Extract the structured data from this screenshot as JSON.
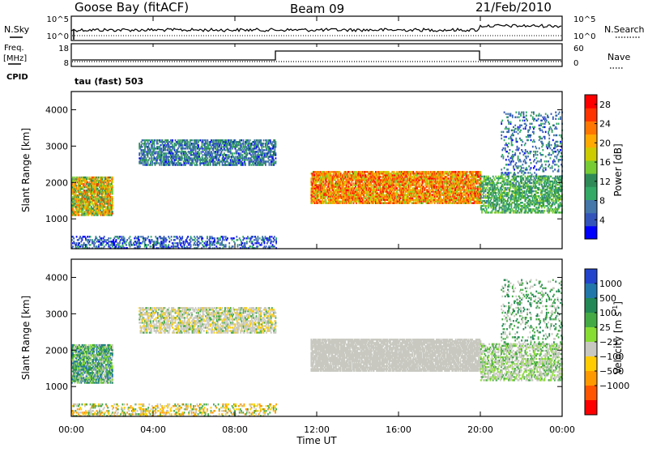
{
  "header": {
    "station": "Goose Bay (fitACF)",
    "beam": "Beam 09",
    "date": "21/Feb/2010"
  },
  "nsky_panel": {
    "left_label": "N.Sky",
    "left_ticks": [
      "10^5",
      "10^0"
    ],
    "right_ticks": [
      "10^5",
      "10^0"
    ],
    "right_label": "N.Search"
  },
  "freq_panel": {
    "left_label_line1": "Freq.",
    "left_label_line2": "[MHz]",
    "left_ticks": [
      "18",
      "8"
    ],
    "right_ticks": [
      "60",
      "0"
    ],
    "right_label": "Nave",
    "cpid_label": "CPID",
    "cpid_value": "tau (fast) 503"
  },
  "chart_data": [
    {
      "type": "heatmap",
      "title": "",
      "xlabel": "Time UT",
      "ylabel": "Slant Range [km]",
      "xlim_hours": [
        0,
        24
      ],
      "ylim_km": [
        180,
        4500
      ],
      "x_ticks": [
        "00:00",
        "04:00",
        "08:00",
        "12:00",
        "16:00",
        "20:00",
        "00:00"
      ],
      "y_ticks": [
        "1000",
        "2000",
        "3000",
        "4000"
      ],
      "colorbar_label": "Power [dB]",
      "colorbar_ticks": [
        "28",
        "24",
        "20",
        "16",
        "12",
        "8",
        "4"
      ],
      "colorbar_range": [
        0,
        30
      ],
      "colors": [
        "#0000ff",
        "#3355bb",
        "#4477aa",
        "#33aa66",
        "#2e8b57",
        "#77cc33",
        "#cccc00",
        "#ffaa00",
        "#ff7700",
        "#ff3300",
        "#ff0000"
      ],
      "regions": [
        {
          "t": [
            0.0,
            2.0
          ],
          "range_km": [
            1000,
            2300
          ],
          "level": "mid-high"
        },
        {
          "t": [
            3.3,
            10.0
          ],
          "range_km": [
            2400,
            3300
          ],
          "level": "low-mid"
        },
        {
          "t": [
            0.0,
            10.0
          ],
          "range_km": [
            200,
            600
          ],
          "level": "low"
        },
        {
          "t": [
            11.7,
            20.0
          ],
          "range_km": [
            1300,
            2400
          ],
          "level": "high"
        },
        {
          "t": [
            20.0,
            24.0
          ],
          "range_km": [
            800,
            2300
          ],
          "level": "mid"
        }
      ]
    },
    {
      "type": "heatmap",
      "title": "",
      "xlabel": "Time UT",
      "ylabel": "Slant Range [km]",
      "xlim_hours": [
        0,
        24
      ],
      "ylim_km": [
        180,
        4500
      ],
      "x_ticks": [
        "00:00",
        "04:00",
        "08:00",
        "12:00",
        "16:00",
        "20:00",
        "00:00"
      ],
      "y_ticks": [
        "1000",
        "2000",
        "3000",
        "4000"
      ],
      "colorbar_label": "Velocity [m s^-1]",
      "colorbar_ticks": [
        "1000",
        "500",
        "100",
        "25",
        "−25",
        "−100",
        "−500",
        "−1000"
      ],
      "colors": [
        "#2244cc",
        "#2277aa",
        "#228855",
        "#44aa44",
        "#88dd33",
        "#c8c8c0",
        "#ffcc00",
        "#ff9900",
        "#ff5500",
        "#ff0000"
      ]
    }
  ],
  "time_axis_label": "Time UT"
}
